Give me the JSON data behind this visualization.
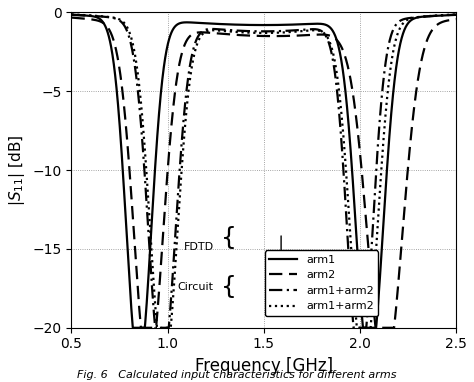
{
  "title": "",
  "xlabel": "Frequency [GHz]",
  "ylabel": "|S\\u2081\\u2081| [dB]",
  "xlim": [
    0.5,
    2.5
  ],
  "ylim": [
    -20,
    0
  ],
  "yticks": [
    0,
    -5,
    -10,
    -15,
    -20
  ],
  "xticks": [
    0.5,
    1.0,
    1.5,
    2.0,
    2.5
  ],
  "figcaption": "Fig. 6   Calculated input characteristics for different arms",
  "grid_color": "#888888",
  "background_color": "#ffffff",
  "line_color": "#000000",
  "legend": {
    "fdtd_label": "FDTD",
    "circuit_label": "Circuit",
    "arm1_label": "arm1",
    "arm2_label": "arm2",
    "arm1arm2_fdtd_label": "arm1+arm2",
    "arm1arm2_circuit_label": "arm1+arm2"
  }
}
